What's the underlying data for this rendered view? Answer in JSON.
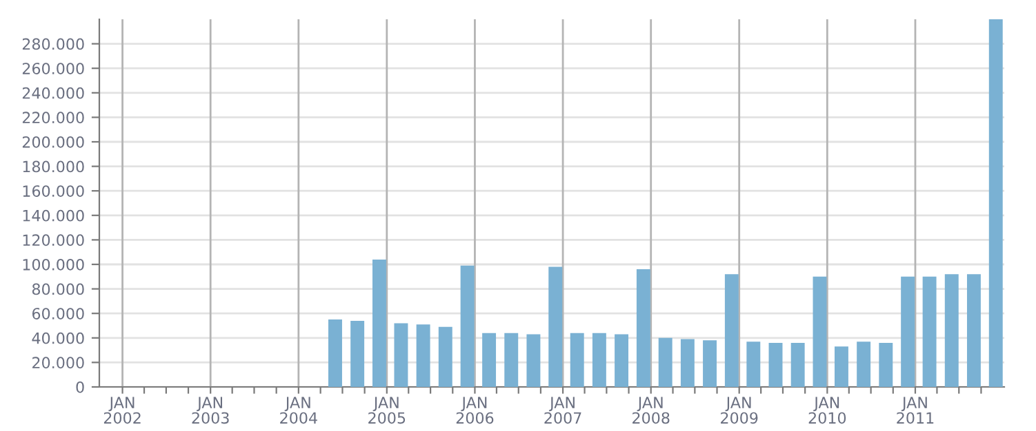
{
  "chart_data": {
    "type": "bar",
    "x": [
      "2004-06",
      "2004-09",
      "2004-12",
      "2005-03",
      "2005-06",
      "2005-09",
      "2005-12",
      "2006-03",
      "2006-06",
      "2006-09",
      "2006-12",
      "2007-03",
      "2007-06",
      "2007-09",
      "2007-12",
      "2008-03",
      "2008-06",
      "2008-09",
      "2008-12",
      "2009-03",
      "2009-06",
      "2009-09",
      "2009-12",
      "2010-03",
      "2010-06",
      "2010-09",
      "2010-12",
      "2011-03",
      "2011-06",
      "2011-09",
      "2011-12"
    ],
    "values": [
      55000,
      54000,
      104000,
      52000,
      51000,
      49000,
      99000,
      44000,
      44000,
      43000,
      98000,
      44000,
      44000,
      43000,
      96000,
      40000,
      39000,
      38000,
      92000,
      37000,
      36000,
      36000,
      90000,
      33000,
      37000,
      36000,
      90000,
      90000,
      92000,
      92000,
      300000
    ],
    "color": "#7ab1d3",
    "xlim": [
      "2001-09-27",
      "2012-01-05"
    ],
    "xticks": [
      {
        "value": "2002-01",
        "label": "JAN\n2002"
      },
      {
        "value": "2002-04",
        "label": null
      },
      {
        "value": "2002-07",
        "label": null
      },
      {
        "value": "2002-10",
        "label": null
      },
      {
        "value": "2003-01",
        "label": "JAN\n2003"
      },
      {
        "value": "2003-04",
        "label": null
      },
      {
        "value": "2003-07",
        "label": null
      },
      {
        "value": "2003-10",
        "label": null
      },
      {
        "value": "2004-01",
        "label": "JAN\n2004"
      },
      {
        "value": "2004-04",
        "label": null
      },
      {
        "value": "2004-07",
        "label": null
      },
      {
        "value": "2004-10",
        "label": null
      },
      {
        "value": "2005-01",
        "label": "JAN\n2005"
      },
      {
        "value": "2005-04",
        "label": null
      },
      {
        "value": "2005-07",
        "label": null
      },
      {
        "value": "2005-10",
        "label": null
      },
      {
        "value": "2006-01",
        "label": "JAN\n2006"
      },
      {
        "value": "2006-04",
        "label": null
      },
      {
        "value": "2006-07",
        "label": null
      },
      {
        "value": "2006-10",
        "label": null
      },
      {
        "value": "2007-01",
        "label": "JAN\n2007"
      },
      {
        "value": "2007-04",
        "label": null
      },
      {
        "value": "2007-07",
        "label": null
      },
      {
        "value": "2007-10",
        "label": null
      },
      {
        "value": "2008-01",
        "label": "JAN\n2008"
      },
      {
        "value": "2008-04",
        "label": null
      },
      {
        "value": "2008-07",
        "label": null
      },
      {
        "value": "2008-10",
        "label": null
      },
      {
        "value": "2009-01",
        "label": "JAN\n2009"
      },
      {
        "value": "2009-04",
        "label": null
      },
      {
        "value": "2009-07",
        "label": null
      },
      {
        "value": "2009-10",
        "label": null
      },
      {
        "value": "2010-01",
        "label": "JAN\n2010"
      },
      {
        "value": "2010-04",
        "label": null
      },
      {
        "value": "2010-07",
        "label": null
      },
      {
        "value": "2010-10",
        "label": null
      },
      {
        "value": "2011-01",
        "label": "JAN\n2011"
      },
      {
        "value": "2011-04",
        "label": null
      },
      {
        "value": "2011-07",
        "label": null
      },
      {
        "value": "2011-10",
        "label": null
      }
    ],
    "ylim": [
      0,
      300000
    ],
    "yticks": [
      0,
      {
        "value": 20000,
        "label": "20.000"
      },
      {
        "value": 40000,
        "label": "40.000"
      },
      {
        "value": 60000,
        "label": "60.000"
      },
      {
        "value": 80000,
        "label": "80.000"
      },
      {
        "value": 100000,
        "label": "100.000"
      },
      {
        "value": 120000,
        "label": "120.000"
      },
      {
        "value": 140000,
        "label": "140.000"
      },
      {
        "value": 160000,
        "label": "160.000"
      },
      {
        "value": 180000,
        "label": "180.000"
      },
      {
        "value": 200000,
        "label": "200.000"
      },
      {
        "value": 220000,
        "label": "220.000"
      },
      {
        "value": 240000,
        "label": "240.000"
      },
      {
        "value": 260000,
        "label": "260.000"
      },
      {
        "value": 280000,
        "label": "280.000"
      }
    ],
    "grid": true
  }
}
